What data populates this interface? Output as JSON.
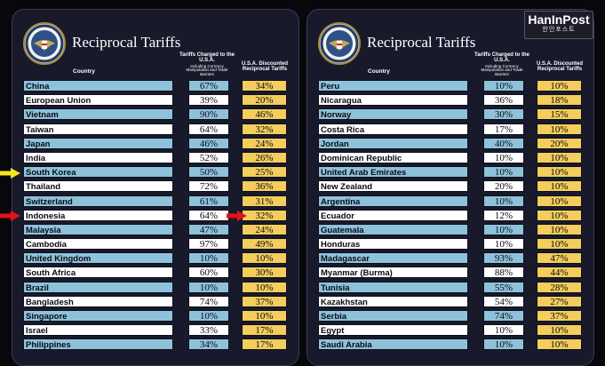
{
  "title": "Reciprocal Tariffs",
  "headers": {
    "country": "Country",
    "charged": "Tariffs Charged to the U.S.A.",
    "charged_sub": "Including Currency Manipulation and Trade Barriers",
    "discounted": "U.S.A. Discounted Reciprocal Tariffs"
  },
  "logo": {
    "text": "HanInPost",
    "korean": "한인포스트"
  },
  "colors": {
    "row_blue": "#8ec2da",
    "row_white": "#ffffff",
    "tariff_yellow": "#f4cd5c",
    "arrow_yellow": "#f5e61c",
    "arrow_red": "#e3111b"
  },
  "left_table": [
    {
      "country": "China",
      "charged": "67%",
      "discounted": "34%"
    },
    {
      "country": "European Union",
      "charged": "39%",
      "discounted": "20%"
    },
    {
      "country": "Vietnam",
      "charged": "90%",
      "discounted": "46%"
    },
    {
      "country": "Taiwan",
      "charged": "64%",
      "discounted": "32%"
    },
    {
      "country": "Japan",
      "charged": "46%",
      "discounted": "24%"
    },
    {
      "country": "India",
      "charged": "52%",
      "discounted": "26%"
    },
    {
      "country": "South Korea",
      "charged": "50%",
      "discounted": "25%"
    },
    {
      "country": "Thailand",
      "charged": "72%",
      "discounted": "36%"
    },
    {
      "country": "Switzerland",
      "charged": "61%",
      "discounted": "31%"
    },
    {
      "country": "Indonesia",
      "charged": "64%",
      "discounted": "32%"
    },
    {
      "country": "Malaysia",
      "charged": "47%",
      "discounted": "24%"
    },
    {
      "country": "Cambodia",
      "charged": "97%",
      "discounted": "49%"
    },
    {
      "country": "United Kingdom",
      "charged": "10%",
      "discounted": "10%"
    },
    {
      "country": "South Africa",
      "charged": "60%",
      "discounted": "30%"
    },
    {
      "country": "Brazil",
      "charged": "10%",
      "discounted": "10%"
    },
    {
      "country": "Bangladesh",
      "charged": "74%",
      "discounted": "37%"
    },
    {
      "country": "Singapore",
      "charged": "10%",
      "discounted": "10%"
    },
    {
      "country": "Israel",
      "charged": "33%",
      "discounted": "17%"
    },
    {
      "country": "Philippines",
      "charged": "34%",
      "discounted": "17%"
    }
  ],
  "right_table": [
    {
      "country": "Peru",
      "charged": "10%",
      "discounted": "10%"
    },
    {
      "country": "Nicaragua",
      "charged": "36%",
      "discounted": "18%"
    },
    {
      "country": "Norway",
      "charged": "30%",
      "discounted": "15%"
    },
    {
      "country": "Costa Rica",
      "charged": "17%",
      "discounted": "10%"
    },
    {
      "country": "Jordan",
      "charged": "40%",
      "discounted": "20%"
    },
    {
      "country": "Dominican Republic",
      "charged": "10%",
      "discounted": "10%"
    },
    {
      "country": "United Arab Emirates",
      "charged": "10%",
      "discounted": "10%"
    },
    {
      "country": "New Zealand",
      "charged": "20%",
      "discounted": "10%"
    },
    {
      "country": "Argentina",
      "charged": "10%",
      "discounted": "10%"
    },
    {
      "country": "Ecuador",
      "charged": "12%",
      "discounted": "10%"
    },
    {
      "country": "Guatemala",
      "charged": "10%",
      "discounted": "10%"
    },
    {
      "country": "Honduras",
      "charged": "10%",
      "discounted": "10%"
    },
    {
      "country": "Madagascar",
      "charged": "93%",
      "discounted": "47%"
    },
    {
      "country": "Myanmar (Burma)",
      "charged": "88%",
      "discounted": "44%"
    },
    {
      "country": "Tunisia",
      "charged": "55%",
      "discounted": "28%"
    },
    {
      "country": "Kazakhstan",
      "charged": "54%",
      "discounted": "27%"
    },
    {
      "country": "Serbia",
      "charged": "74%",
      "discounted": "37%"
    },
    {
      "country": "Egypt",
      "charged": "10%",
      "discounted": "10%"
    },
    {
      "country": "Saudi Arabia",
      "charged": "10%",
      "discounted": "10%"
    }
  ]
}
